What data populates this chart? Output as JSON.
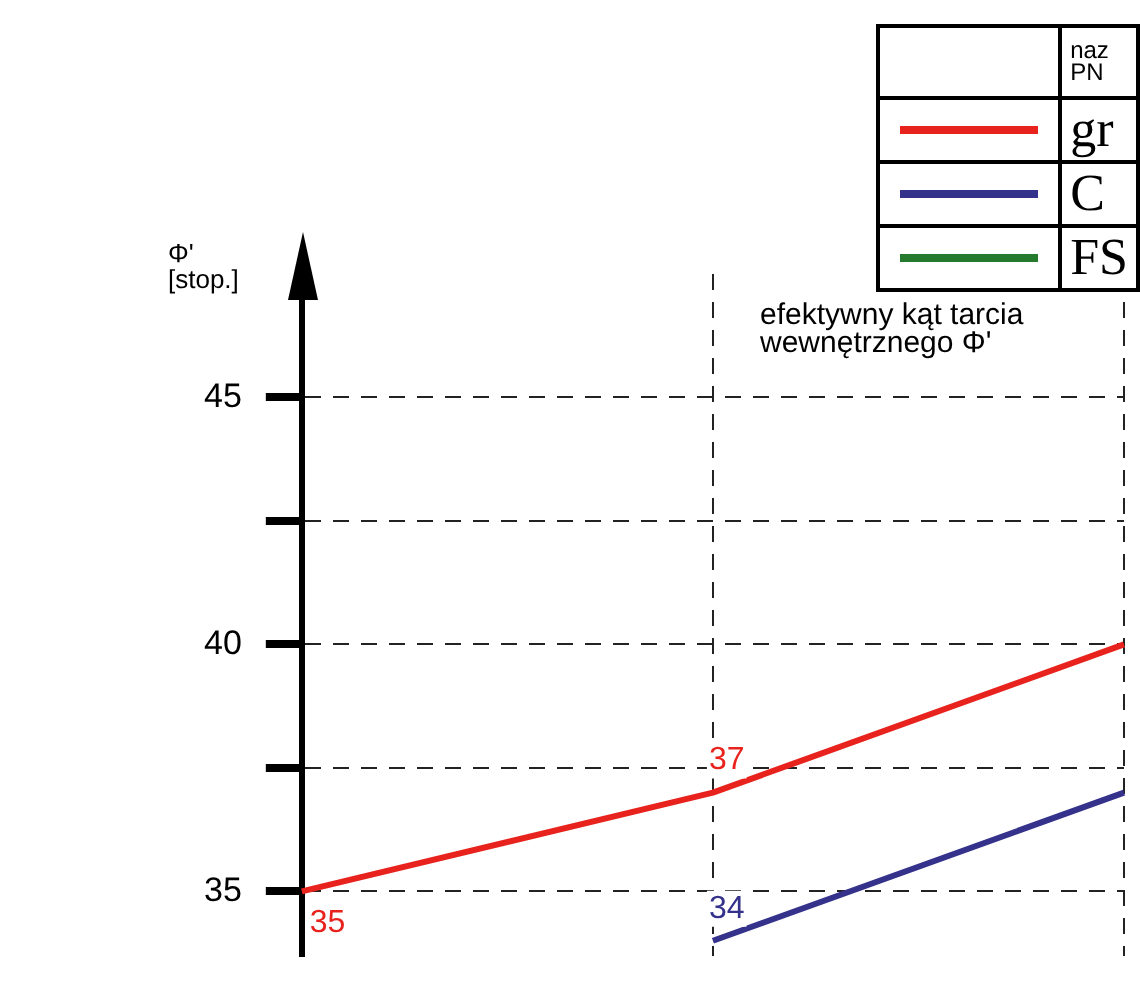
{
  "chart_data": {
    "type": "line",
    "ylabel": "Φ'\n[stop.]",
    "legend_title": "naz\nPN",
    "legend": "top right",
    "annotations": [
      "efektywny kąt tarcia\nwewnętrznego Φ'"
    ],
    "categories": [
      null,
      null,
      null
    ],
    "series": [
      {
        "name": "gr",
        "color": "#e8231e",
        "values": [
          35,
          37,
          40
        ],
        "value_labels": [
          "35",
          "37",
          null
        ]
      },
      {
        "name": "C",
        "color": "#35328c",
        "values": [
          null,
          34,
          37
        ],
        "value_labels": [
          null,
          "34",
          null
        ]
      },
      {
        "name": "FS",
        "color": "#267a2e",
        "values": [
          null,
          null,
          null
        ]
      }
    ],
    "ylim": [
      33.7,
      47.5
    ],
    "yticks": [
      35,
      {
        "value": 37.5,
        "label": null
      },
      40,
      {
        "value": 42.5,
        "label": null
      },
      45
    ],
    "grid": true,
    "tick_labels": "y",
    "marker": "none",
    "line_style": "solid"
  }
}
